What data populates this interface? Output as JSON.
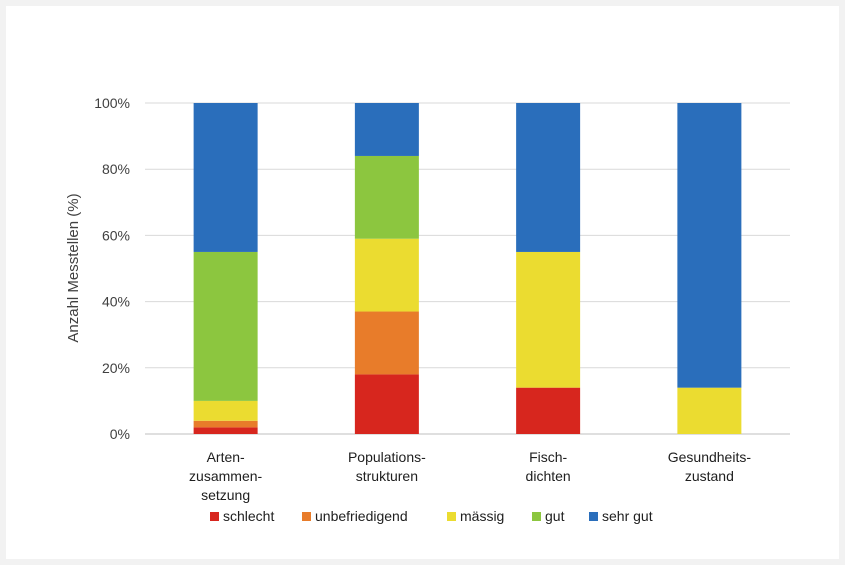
{
  "chart_data": {
    "type": "bar",
    "stacked": true,
    "ylabel": "Anzahl Messtellen (%)",
    "ylim": [
      0,
      100
    ],
    "yticks": [
      "0%",
      "20%",
      "40%",
      "60%",
      "80%",
      "100%"
    ],
    "grid": true,
    "legend_position": "bottom",
    "categories": [
      [
        "Arten-",
        "zusammen-",
        "setzung"
      ],
      [
        "Populations-",
        "strukturen"
      ],
      [
        "Fisch-",
        "dichten"
      ],
      [
        "Gesundheits-",
        "zustand"
      ]
    ],
    "series": [
      {
        "name": "schlecht",
        "color": "#d7261e",
        "values": [
          2,
          18,
          14,
          0
        ]
      },
      {
        "name": "unbefriedigend",
        "color": "#e87c2a",
        "values": [
          2,
          19,
          0,
          0
        ]
      },
      {
        "name": "mässig",
        "color": "#ebdc30",
        "values": [
          6,
          22,
          41,
          14
        ]
      },
      {
        "name": "gut",
        "color": "#8cc63f",
        "values": [
          45,
          25,
          0,
          0
        ]
      },
      {
        "name": "sehr gut",
        "color": "#2a6ebb",
        "values": [
          45,
          16,
          45,
          86
        ]
      }
    ]
  }
}
